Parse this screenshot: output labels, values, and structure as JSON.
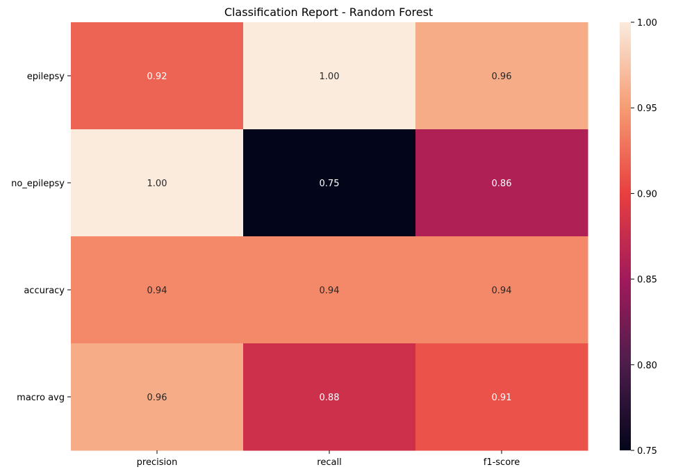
{
  "chart_data": {
    "type": "heatmap",
    "title": "Classification Report - Random Forest",
    "xlabel": "",
    "ylabel": "",
    "columns": [
      "precision",
      "recall",
      "f1-score"
    ],
    "rows": [
      "epilepsy",
      "no_epilepsy",
      "accuracy",
      "macro avg"
    ],
    "values": [
      [
        0.92,
        1.0,
        0.96
      ],
      [
        1.0,
        0.75,
        0.86
      ],
      [
        0.94,
        0.94,
        0.94
      ],
      [
        0.96,
        0.88,
        0.91
      ]
    ],
    "annotations": [
      [
        "0.92",
        "1.00",
        "0.96"
      ],
      [
        "1.00",
        "0.75",
        "0.86"
      ],
      [
        "0.94",
        "0.94",
        "0.94"
      ],
      [
        "0.96",
        "0.88",
        "0.91"
      ]
    ],
    "colorbar": {
      "range": [
        0.75,
        1.0
      ],
      "ticks": [
        0.75,
        0.8,
        0.85,
        0.9,
        0.95,
        1.0
      ],
      "tick_labels": [
        "0.75",
        "0.80",
        "0.85",
        "0.90",
        "0.95",
        "1.00"
      ]
    },
    "colormap": "rocket",
    "colormap_stops": [
      "#03051a",
      "#4c1d4b",
      "#a11a5b",
      "#e83f3f",
      "#f69c73",
      "#faebdd"
    ]
  }
}
